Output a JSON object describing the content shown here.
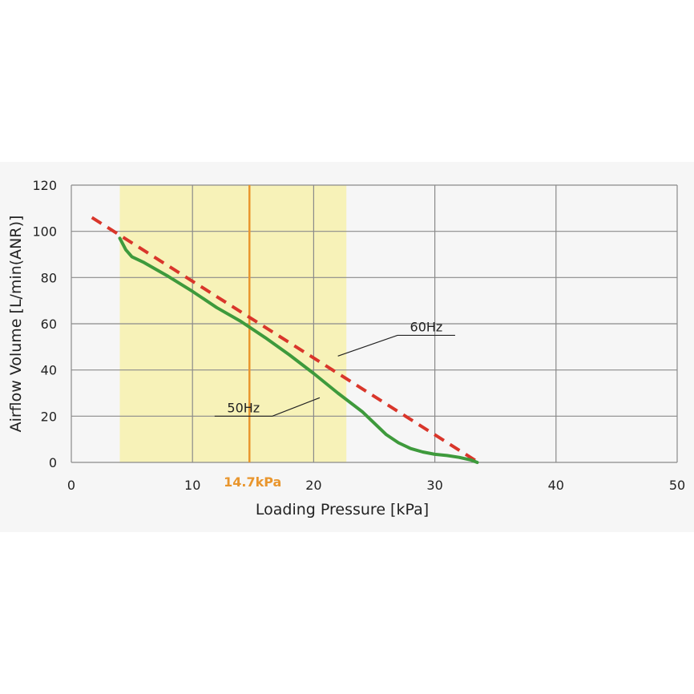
{
  "chart_data": {
    "type": "line",
    "xlabel": "Loading Pressure [kPa]",
    "ylabel": "Airflow Volume [L/min(ANR)]",
    "xlim": [
      0,
      50
    ],
    "ylim": [
      0,
      120
    ],
    "x_ticks": [
      0,
      10,
      20,
      30,
      40,
      50
    ],
    "y_ticks": [
      0,
      20,
      40,
      60,
      80,
      100,
      120
    ],
    "grid": true,
    "shaded_region": {
      "x_range": [
        4,
        22.7
      ],
      "color": "#f7f2b8"
    },
    "reference_line": {
      "x": 14.7,
      "label": "14.7kPa",
      "color": "#e9962e"
    },
    "series": [
      {
        "name": "60Hz",
        "style": "dashed",
        "color": "#d9362b",
        "x": [
          1.7,
          33.6
        ],
        "y": [
          106,
          0
        ]
      },
      {
        "name": "50Hz",
        "style": "solid",
        "color": "#3e9a3c",
        "x": [
          4,
          4.5,
          5,
          6,
          7,
          8,
          10,
          12,
          14,
          16,
          18,
          20,
          22,
          24,
          25,
          26,
          27,
          28,
          29,
          30,
          31,
          32,
          33,
          33.5
        ],
        "y": [
          97,
          92,
          89,
          86.5,
          83.5,
          80.5,
          74,
          67,
          61,
          54,
          46.5,
          38.5,
          30,
          22,
          17,
          12,
          8.5,
          6,
          4.5,
          3.5,
          3,
          2.2,
          1,
          0
        ]
      }
    ],
    "annotations": [
      {
        "text": "60Hz",
        "series": "60Hz",
        "at": {
          "x": 22,
          "y": 46
        },
        "label_at": {
          "x": 28.5,
          "y": 55
        }
      },
      {
        "text": "50Hz",
        "series": "50Hz",
        "at": {
          "x": 20.5,
          "y": 28
        },
        "label_at": {
          "x": 15,
          "y": 20
        }
      }
    ]
  }
}
